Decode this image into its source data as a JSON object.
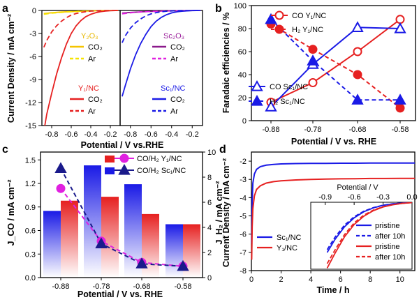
{
  "chart_data": [
    {
      "panel": "a",
      "type": "line",
      "xlabel": "Potential / V vs.RHE",
      "ylabel": "Current Density / mA cm⁻²",
      "ylim": [
        -15,
        0
      ],
      "y_ticks": [
        "0",
        "-3",
        "-6",
        "-9",
        "-12",
        "-15"
      ],
      "subplots": [
        {
          "xlim": [
            -0.9,
            -0.1
          ],
          "x_ticks": [
            "-0.8",
            "-0.6",
            "-0.4",
            "-0.2"
          ],
          "legend": [
            {
              "title": "Y₂O₃",
              "title_color": "#e8b800",
              "entries": [
                {
                  "label": "CO₂",
                  "color": "#f5c400",
                  "dash": false
                },
                {
                  "label": "Ar",
                  "color": "#f5e400",
                  "dash": true
                }
              ]
            },
            {
              "title": "Y₁/NC",
              "title_color": "#e62020",
              "entries": [
                {
                  "label": "CO₂",
                  "color": "#e62020",
                  "dash": false
                },
                {
                  "label": "Ar",
                  "color": "#e62020",
                  "dash": true
                }
              ]
            }
          ],
          "series": [
            {
              "name": "Y₂O₃ CO₂",
              "color": "#f5c400",
              "dash": false,
              "x": [
                -0.88,
                -0.8,
                -0.7,
                -0.6,
                -0.5,
                -0.4,
                -0.3,
                -0.2,
                -0.12
              ],
              "y": [
                -0.4,
                -0.3,
                -0.2,
                -0.15,
                -0.1,
                -0.05,
                -0.03,
                -0.01,
                0
              ]
            },
            {
              "name": "Y₂O₃ Ar",
              "color": "#f5e400",
              "dash": true,
              "x": [
                -0.88,
                -0.8,
                -0.7,
                -0.6,
                -0.5,
                -0.4,
                -0.3,
                -0.2,
                -0.12
              ],
              "y": [
                -0.5,
                -0.35,
                -0.25,
                -0.15,
                -0.1,
                -0.06,
                -0.03,
                -0.01,
                0
              ]
            },
            {
              "name": "Y₁/NC CO₂",
              "color": "#e62020",
              "dash": false,
              "x": [
                -0.87,
                -0.85,
                -0.8,
                -0.75,
                -0.7,
                -0.65,
                -0.6,
                -0.55,
                -0.5,
                -0.45,
                -0.4,
                -0.35,
                -0.3,
                -0.25,
                -0.2,
                -0.12
              ],
              "y": [
                -15,
                -13.5,
                -10.8,
                -8.3,
                -6.2,
                -4.4,
                -3.0,
                -2.0,
                -1.3,
                -0.8,
                -0.5,
                -0.3,
                -0.15,
                -0.08,
                -0.04,
                0
              ]
            },
            {
              "name": "Y₁/NC Ar",
              "color": "#e62020",
              "dash": true,
              "x": [
                -0.88,
                -0.85,
                -0.8,
                -0.75,
                -0.7,
                -0.65,
                -0.6,
                -0.55,
                -0.5,
                -0.45,
                -0.4,
                -0.35,
                -0.3,
                -0.25,
                -0.2,
                -0.12
              ],
              "y": [
                -4.8,
                -3.9,
                -2.8,
                -2.0,
                -1.4,
                -0.95,
                -0.6,
                -0.4,
                -0.25,
                -0.15,
                -0.08,
                -0.05,
                -0.03,
                -0.02,
                -0.01,
                0
              ]
            }
          ]
        },
        {
          "xlim": [
            -0.9,
            -0.1
          ],
          "x_ticks": [
            "-0.8",
            "-0.6",
            "-0.4",
            "-0.2"
          ],
          "legend": [
            {
              "title": "Sc₂O₃",
              "title_color": "#9b1f9b",
              "entries": [
                {
                  "label": "CO₂",
                  "color": "#8b1a8b",
                  "dash": false
                },
                {
                  "label": "Ar",
                  "color": "#e020e0",
                  "dash": true
                }
              ]
            },
            {
              "title": "Sc₁/NC",
              "title_color": "#1a1ae6",
              "entries": [
                {
                  "label": "CO₂",
                  "color": "#1a1ae6",
                  "dash": false
                },
                {
                  "label": "Ar",
                  "color": "#1a1ae6",
                  "dash": true
                }
              ]
            }
          ],
          "series": [
            {
              "name": "Sc₂O₃ CO₂",
              "color": "#8b1a8b",
              "dash": false,
              "x": [
                -0.88,
                -0.8,
                -0.7,
                -0.6,
                -0.5,
                -0.4,
                -0.3,
                -0.2,
                -0.12
              ],
              "y": [
                -0.35,
                -0.25,
                -0.18,
                -0.12,
                -0.08,
                -0.05,
                -0.03,
                -0.01,
                0
              ]
            },
            {
              "name": "Sc₂O₃ Ar",
              "color": "#e020e0",
              "dash": true,
              "x": [
                -0.88,
                -0.8,
                -0.7,
                -0.6,
                -0.5,
                -0.4,
                -0.3,
                -0.2,
                -0.12
              ],
              "y": [
                -0.45,
                -0.3,
                -0.2,
                -0.13,
                -0.08,
                -0.05,
                -0.03,
                -0.01,
                0
              ]
            },
            {
              "name": "Sc₁/NC CO₂",
              "color": "#1a1ae6",
              "dash": false,
              "x": [
                -0.88,
                -0.85,
                -0.8,
                -0.75,
                -0.7,
                -0.65,
                -0.6,
                -0.55,
                -0.5,
                -0.45,
                -0.4,
                -0.35,
                -0.3,
                -0.25,
                -0.2,
                -0.12
              ],
              "y": [
                -11.2,
                -9.8,
                -7.6,
                -5.8,
                -4.3,
                -3.1,
                -2.1,
                -1.4,
                -0.9,
                -0.55,
                -0.32,
                -0.18,
                -0.1,
                -0.05,
                -0.02,
                0
              ]
            },
            {
              "name": "Sc₁/NC Ar",
              "color": "#1a1ae6",
              "dash": true,
              "x": [
                -0.88,
                -0.85,
                -0.8,
                -0.75,
                -0.7,
                -0.65,
                -0.6,
                -0.55,
                -0.5,
                -0.45,
                -0.4,
                -0.35,
                -0.3,
                -0.25,
                -0.2,
                -0.12
              ],
              "y": [
                -4.2,
                -3.3,
                -2.3,
                -1.6,
                -1.1,
                -0.7,
                -0.45,
                -0.28,
                -0.17,
                -0.1,
                -0.06,
                -0.04,
                -0.02,
                -0.01,
                -0.01,
                0
              ]
            }
          ]
        }
      ]
    },
    {
      "panel": "b",
      "type": "line",
      "xlabel": "Potential / V vs. RHE",
      "ylabel": "Faradaic efficiencies / %",
      "categories": [
        "-0.88",
        "-0.78",
        "-0.68",
        "-0.58"
      ],
      "ylim": [
        0,
        100
      ],
      "y_ticks": [
        "0",
        "20",
        "40",
        "60",
        "80",
        "100"
      ],
      "series": [
        {
          "name": "CO Y₁/NC",
          "color": "#e62020",
          "dash": false,
          "marker": "circle-open",
          "values": [
            16,
            33,
            60,
            88
          ]
        },
        {
          "name": "H₂ Y₁/NC",
          "color": "#e62020",
          "dash": true,
          "marker": "circle-filled",
          "values": [
            84,
            62,
            40,
            11
          ]
        },
        {
          "name": "CO Sc₁/NC",
          "color": "#1a1ae6",
          "dash": false,
          "marker": "triangle-open",
          "values": [
            12,
            49,
            81,
            80
          ]
        },
        {
          "name": "H₂ Sc₁/NC",
          "color": "#1a1ae6",
          "dash": true,
          "marker": "triangle-filled",
          "values": [
            88,
            52,
            18,
            18
          ]
        }
      ]
    },
    {
      "panel": "c",
      "type": "bar",
      "xlabel": "Potential / V vs. RHE",
      "ylabel_left": "J_CO / mA cm⁻²",
      "ylabel_right": "J_H₂ / mA cm⁻²",
      "categories": [
        "-0.88",
        "-0.78",
        "-0.68",
        "-0.58"
      ],
      "ylim_left": [
        0,
        1.6
      ],
      "ylim_right": [
        0,
        10
      ],
      "y_ticks_left": [
        "0.0",
        "0.3",
        "0.6",
        "0.9",
        "1.2",
        "1.5"
      ],
      "y_ticks_right": [
        "0",
        "2",
        "4",
        "6",
        "8",
        "10"
      ],
      "bars": [
        {
          "name": "Sc₁/NC",
          "color": "#1a1ae6",
          "values": [
            0.85,
            1.43,
            1.19,
            0.68
          ]
        },
        {
          "name": "Y₁/NC",
          "color": "#e62020",
          "values": [
            0.98,
            1.03,
            0.81,
            0.68
          ]
        }
      ],
      "series": [
        {
          "name": "CO/H₂ Y₁/NC",
          "color": "#e020e0",
          "marker": "circle-filled",
          "dash": true,
          "values": [
            7.1,
            2.9,
            1.2,
            0.9
          ]
        },
        {
          "name": "CO/H₂ Sc₁/NC",
          "color": "#1a1a8b",
          "marker": "triangle-filled",
          "dash": true,
          "values": [
            8.7,
            2.7,
            1.1,
            0.9
          ]
        }
      ]
    },
    {
      "panel": "d",
      "type": "line",
      "xlabel": "Time / h",
      "ylabel": "Current Density / mA cm⁻²",
      "xlim": [
        0,
        11
      ],
      "ylim": [
        -8,
        -1.5
      ],
      "x_ticks": [
        "0",
        "2",
        "4",
        "6",
        "8",
        "10"
      ],
      "y_ticks": [
        "-2",
        "-3",
        "-4",
        "-5",
        "-6",
        "-7",
        "-8"
      ],
      "series": [
        {
          "name": "Sc₁/NC",
          "color": "#1a1ae6",
          "x": [
            0.02,
            0.05,
            0.1,
            0.2,
            0.35,
            0.6,
            1,
            1.5,
            2,
            3,
            4,
            5,
            6,
            7,
            8,
            9,
            10,
            11
          ],
          "y": [
            -6.5,
            -4.2,
            -3.2,
            -2.7,
            -2.45,
            -2.3,
            -2.22,
            -2.18,
            -2.15,
            -2.13,
            -2.12,
            -2.12,
            -2.11,
            -2.11,
            -2.1,
            -2.1,
            -2.1,
            -2.1
          ]
        },
        {
          "name": "Y₁/NC",
          "color": "#e62020",
          "x": [
            0.02,
            0.05,
            0.1,
            0.2,
            0.35,
            0.6,
            1,
            1.5,
            2,
            3,
            4,
            5,
            6,
            7,
            8,
            9,
            10,
            11
          ],
          "y": [
            -7.4,
            -5.6,
            -4.6,
            -3.9,
            -3.55,
            -3.35,
            -3.2,
            -3.12,
            -3.08,
            -3.03,
            -3.0,
            -2.98,
            -2.97,
            -2.96,
            -2.95,
            -2.95,
            -2.94,
            -2.94
          ]
        }
      ],
      "inset": {
        "xlabel": "Potential / V",
        "xlim": [
          -1.05,
          0
        ],
        "x_ticks": [
          "-0.9",
          "-0.6",
          "-0.3",
          "0.0"
        ],
        "ylim": [
          -12,
          0
        ],
        "series": [
          {
            "name": "pristine",
            "group": "Sc₁/NC",
            "color": "#1a1ae6",
            "dash": false,
            "x": [
              -0.88,
              -0.8,
              -0.7,
              -0.6,
              -0.5,
              -0.4,
              -0.3,
              -0.2,
              -0.1,
              0
            ],
            "y": [
              -9.0,
              -6.7,
              -4.4,
              -2.8,
              -1.7,
              -1.0,
              -0.55,
              -0.3,
              -0.15,
              -0.05
            ]
          },
          {
            "name": "after 10h",
            "group": "Sc₁/NC",
            "color": "#1a1ae6",
            "dash": true,
            "x": [
              -0.88,
              -0.8,
              -0.7,
              -0.6,
              -0.5,
              -0.4,
              -0.3,
              -0.2,
              -0.1,
              0
            ],
            "y": [
              -8.5,
              -6.3,
              -4.1,
              -2.6,
              -1.6,
              -0.95,
              -0.52,
              -0.28,
              -0.14,
              -0.05
            ]
          },
          {
            "name": "pristine",
            "group": "Y₁/NC",
            "color": "#e62020",
            "dash": false,
            "x": [
              -0.88,
              -0.8,
              -0.7,
              -0.6,
              -0.5,
              -0.4,
              -0.3,
              -0.2,
              -0.1,
              0
            ],
            "y": [
              -11.8,
              -9.2,
              -6.2,
              -4.0,
              -2.5,
              -1.5,
              -0.85,
              -0.45,
              -0.2,
              -0.06
            ]
          },
          {
            "name": "after 10h",
            "group": "Y₁/NC",
            "color": "#e62020",
            "dash": true,
            "x": [
              -0.88,
              -0.8,
              -0.7,
              -0.6,
              -0.5,
              -0.4,
              -0.3,
              -0.2,
              -0.1,
              0
            ],
            "y": [
              -11.0,
              -8.6,
              -5.8,
              -3.7,
              -2.3,
              -1.4,
              -0.8,
              -0.42,
              -0.19,
              -0.06
            ]
          }
        ]
      }
    }
  ]
}
